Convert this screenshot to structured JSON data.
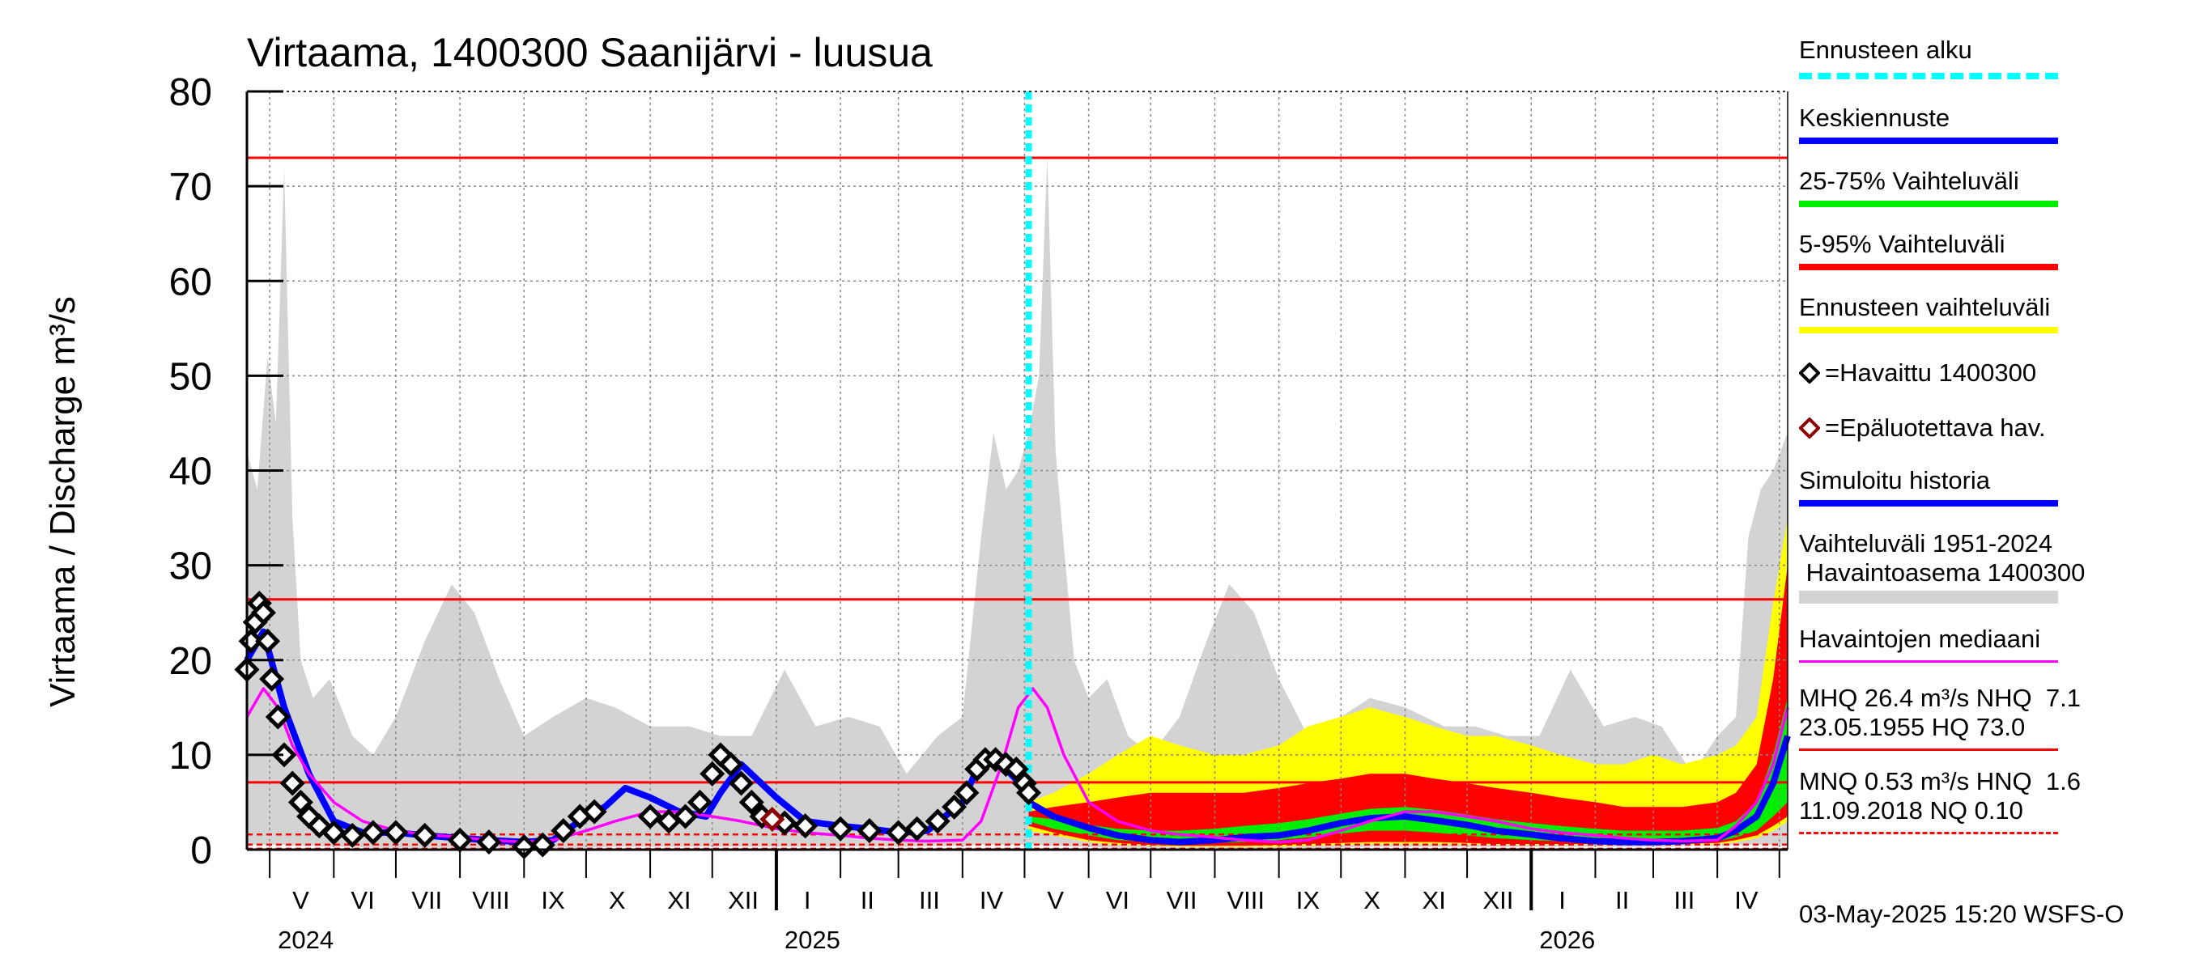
{
  "chart_data": {
    "type": "line",
    "title": "Virtaama, 1400300 Saanijärvi - luusua",
    "ylabel": "Virtaama / Discharge    m³/s",
    "ylim": [
      0,
      80
    ],
    "yticks": [
      0,
      10,
      20,
      30,
      40,
      50,
      60,
      70,
      80
    ],
    "xlim": [
      "2024-04-20",
      "2026-05-05"
    ],
    "month_labels": [
      "V",
      "VI",
      "VII",
      "VIII",
      "IX",
      "X",
      "XI",
      "XII",
      "I",
      "II",
      "III",
      "IV",
      "V",
      "VI",
      "VII",
      "VIII",
      "IX",
      "X",
      "XI",
      "XII",
      "I",
      "II",
      "III",
      "IV"
    ],
    "month_label_dates": [
      "2024-05-16",
      "2024-06-15",
      "2024-07-16",
      "2024-08-16",
      "2024-09-15",
      "2024-10-16",
      "2024-11-15",
      "2024-12-16",
      "2025-01-16",
      "2025-02-14",
      "2025-03-16",
      "2025-04-15",
      "2025-05-16",
      "2025-06-15",
      "2025-07-16",
      "2025-08-16",
      "2025-09-15",
      "2025-10-16",
      "2025-11-15",
      "2025-12-16",
      "2026-01-16",
      "2026-02-14",
      "2026-03-16",
      "2026-04-15"
    ],
    "year_labels": [
      {
        "text": "2024",
        "date": "2024-05-01"
      },
      {
        "text": "2025",
        "date": "2025-01-01"
      },
      {
        "text": "2026",
        "date": "2026-01-01"
      }
    ],
    "forecast_start": "2025-05-03",
    "reference_lines": [
      {
        "name": "HQ",
        "value": 73.0,
        "style": "solid"
      },
      {
        "name": "MHQ",
        "value": 26.4,
        "style": "solid"
      },
      {
        "name": "NHQ",
        "value": 7.1,
        "style": "solid"
      },
      {
        "name": "MNQ",
        "value": 0.53,
        "style": "dashed"
      },
      {
        "name": "HNQ",
        "value": 1.6,
        "style": "dashed"
      },
      {
        "name": "NQ",
        "value": 0.1,
        "style": "dashed"
      }
    ],
    "grid": true,
    "series": [
      {
        "name": "Vaihteluväli 1951-2024 Havaintoasema 1400300",
        "kind": "band",
        "color": "#d3d3d3",
        "x": [
          "2024-04-20",
          "2024-04-25",
          "2024-04-30",
          "2024-05-04",
          "2024-05-08",
          "2024-05-12",
          "2024-05-16",
          "2024-05-22",
          "2024-05-30",
          "2024-06-10",
          "2024-06-20",
          "2024-07-01",
          "2024-07-15",
          "2024-07-28",
          "2024-08-08",
          "2024-08-20",
          "2024-09-01",
          "2024-09-15",
          "2024-10-01",
          "2024-10-15",
          "2024-11-01",
          "2024-11-20",
          "2024-12-05",
          "2024-12-20",
          "2025-01-05",
          "2025-01-20",
          "2025-02-05",
          "2025-02-20",
          "2025-03-05",
          "2025-03-20",
          "2025-04-01",
          "2025-04-10",
          "2025-04-16",
          "2025-04-22",
          "2025-04-28",
          "2025-05-03",
          "2025-05-08",
          "2025-05-12",
          "2025-05-16",
          "2025-05-20",
          "2025-05-25",
          "2025-06-01",
          "2025-06-10",
          "2025-06-20",
          "2025-07-01",
          "2025-07-15",
          "2025-07-28",
          "2025-08-08",
          "2025-08-20",
          "2025-09-01",
          "2025-09-15",
          "2025-10-01",
          "2025-10-15",
          "2025-11-01",
          "2025-11-20",
          "2025-12-05",
          "2025-12-20",
          "2026-01-05",
          "2026-01-20",
          "2026-02-05",
          "2026-02-20",
          "2026-03-05",
          "2026-03-20",
          "2026-04-01",
          "2026-04-10",
          "2026-04-16",
          "2026-04-22",
          "2026-04-28",
          "2026-05-05"
        ],
        "low": [
          0.5,
          0.5,
          0.5,
          0.5,
          0.5,
          0.4,
          0.4,
          0.4,
          0.3,
          0.3,
          0.2,
          0.2,
          0.2,
          0.2,
          0.1,
          0.1,
          0.1,
          0.1,
          0.2,
          0.3,
          0.3,
          0.3,
          0.3,
          0.3,
          0.3,
          0.3,
          0.3,
          0.3,
          0.3,
          0.4,
          0.4,
          0.5,
          0.5,
          0.5,
          0.5,
          0.5,
          0.5,
          0.4,
          0.4,
          0.4,
          0.3,
          0.3,
          0.2,
          0.2,
          0.2,
          0.2,
          0.2,
          0.1,
          0.1,
          0.1,
          0.1,
          0.2,
          0.3,
          0.3,
          0.3,
          0.3,
          0.3,
          0.3,
          0.3,
          0.3,
          0.3,
          0.3,
          0.4,
          0.4,
          0.5,
          0.5,
          0.5,
          0.5,
          0.5
        ],
        "high": [
          42,
          38,
          52,
          45,
          72,
          35,
          20,
          16,
          18,
          12,
          10,
          14,
          22,
          28,
          25,
          18,
          12,
          14,
          16,
          15,
          13,
          13,
          12,
          12,
          19,
          13,
          14,
          13,
          8,
          12,
          14,
          33,
          44,
          38,
          40,
          44,
          50,
          73,
          42,
          32,
          20,
          16,
          18,
          12,
          10,
          14,
          22,
          28,
          25,
          18,
          12,
          14,
          16,
          15,
          13,
          13,
          12,
          12,
          19,
          13,
          14,
          13,
          8,
          12,
          14,
          33,
          38,
          40,
          44
        ]
      },
      {
        "name": "Ennusteen vaihteluväli",
        "kind": "band",
        "color": "#ffff00",
        "x": [
          "2025-05-03",
          "2025-05-15",
          "2025-06-01",
          "2025-06-15",
          "2025-07-01",
          "2025-07-15",
          "2025-08-01",
          "2025-08-15",
          "2025-09-01",
          "2025-09-15",
          "2025-10-01",
          "2025-10-15",
          "2025-11-01",
          "2025-11-15",
          "2025-12-01",
          "2025-12-15",
          "2026-01-01",
          "2026-01-15",
          "2026-02-01",
          "2026-02-15",
          "2026-03-01",
          "2026-03-15",
          "2026-04-01",
          "2026-04-10",
          "2026-04-20",
          "2026-04-28",
          "2026-05-05"
        ],
        "low": [
          2.0,
          1.5,
          0.8,
          0.5,
          0.4,
          0.3,
          0.3,
          0.3,
          0.3,
          0.4,
          0.5,
          0.6,
          0.6,
          0.6,
          0.6,
          0.5,
          0.5,
          0.5,
          0.5,
          0.5,
          0.5,
          0.5,
          0.6,
          0.8,
          1.2,
          2.0,
          3.0
        ],
        "high": [
          5,
          6,
          8,
          10,
          12,
          11,
          10,
          10,
          11,
          13,
          14,
          15,
          14,
          13,
          12,
          12,
          11,
          10,
          9,
          9,
          10,
          9,
          10,
          11,
          14,
          26,
          35
        ]
      },
      {
        "name": "5-95% Vaihteluväli",
        "kind": "band",
        "color": "#ff0000",
        "x": [
          "2025-05-03",
          "2025-05-15",
          "2025-06-01",
          "2025-06-15",
          "2025-07-01",
          "2025-07-15",
          "2025-08-01",
          "2025-08-15",
          "2025-09-01",
          "2025-09-15",
          "2025-10-01",
          "2025-10-15",
          "2025-11-01",
          "2025-11-15",
          "2025-12-01",
          "2025-12-15",
          "2026-01-01",
          "2026-01-15",
          "2026-02-01",
          "2026-02-15",
          "2026-03-01",
          "2026-03-15",
          "2026-04-01",
          "2026-04-10",
          "2026-04-20",
          "2026-04-28",
          "2026-05-05"
        ],
        "low": [
          2.5,
          1.8,
          1.0,
          0.7,
          0.5,
          0.4,
          0.4,
          0.4,
          0.5,
          0.6,
          0.7,
          0.8,
          0.8,
          0.8,
          0.7,
          0.6,
          0.6,
          0.6,
          0.6,
          0.6,
          0.6,
          0.6,
          0.7,
          1.0,
          1.5,
          2.5,
          3.5
        ],
        "high": [
          4,
          4.5,
          5,
          5.5,
          6,
          6,
          6,
          6,
          6.5,
          7,
          7.5,
          8,
          8,
          7.5,
          7,
          6.5,
          6,
          5.5,
          5,
          4.5,
          4.5,
          4.5,
          5,
          6,
          9,
          18,
          30
        ]
      },
      {
        "name": "25-75% Vaihteluväli",
        "kind": "band",
        "color": "#00ee00",
        "x": [
          "2025-05-03",
          "2025-05-15",
          "2025-06-01",
          "2025-06-15",
          "2025-07-01",
          "2025-07-15",
          "2025-08-01",
          "2025-08-15",
          "2025-09-01",
          "2025-09-15",
          "2025-10-01",
          "2025-10-15",
          "2025-11-01",
          "2025-11-15",
          "2025-12-01",
          "2025-12-15",
          "2026-01-01",
          "2026-01-15",
          "2026-02-01",
          "2026-02-15",
          "2026-03-01",
          "2026-03-15",
          "2026-04-01",
          "2026-04-10",
          "2026-04-20",
          "2026-04-28",
          "2026-05-05"
        ],
        "low": [
          3.0,
          2.2,
          1.5,
          1.0,
          0.8,
          0.7,
          0.7,
          0.8,
          1.0,
          1.3,
          1.7,
          2.0,
          2.0,
          1.8,
          1.5,
          1.2,
          1.0,
          0.9,
          0.8,
          0.8,
          0.8,
          0.8,
          0.9,
          1.3,
          2.0,
          3.5,
          5.0
        ],
        "high": [
          3.5,
          3.2,
          2.6,
          2.2,
          2.0,
          2.0,
          2.2,
          2.5,
          2.8,
          3.2,
          3.8,
          4.3,
          4.5,
          4.2,
          3.7,
          3.2,
          2.8,
          2.5,
          2.2,
          2.0,
          2.0,
          2.0,
          2.3,
          3.0,
          5.0,
          10,
          16
        ]
      },
      {
        "name": "Keskiennuste",
        "kind": "line",
        "color": "#0000ff",
        "x": [
          "2025-05-03",
          "2025-05-15",
          "2025-06-01",
          "2025-06-15",
          "2025-07-01",
          "2025-07-15",
          "2025-08-01",
          "2025-08-15",
          "2025-09-01",
          "2025-09-15",
          "2025-10-01",
          "2025-10-15",
          "2025-11-01",
          "2025-11-15",
          "2025-12-01",
          "2025-12-15",
          "2026-01-01",
          "2026-01-15",
          "2026-02-01",
          "2026-02-15",
          "2026-03-01",
          "2026-03-15",
          "2026-04-01",
          "2026-04-10",
          "2026-04-20",
          "2026-04-28",
          "2026-05-05"
        ],
        "values": [
          5.0,
          3.5,
          2.3,
          1.5,
          1.0,
          0.8,
          1.0,
          1.3,
          1.5,
          2.0,
          2.8,
          3.3,
          3.5,
          3.1,
          2.6,
          2.0,
          1.6,
          1.2,
          0.9,
          0.8,
          0.8,
          0.9,
          1.2,
          2.0,
          3.5,
          7.0,
          12
        ]
      },
      {
        "name": "Simuloitu historia",
        "kind": "line",
        "color": "#0000ff",
        "x": [
          "2024-04-20",
          "2024-04-28",
          "2024-05-08",
          "2024-05-20",
          "2024-06-01",
          "2024-06-15",
          "2024-07-01",
          "2024-07-15",
          "2024-08-01",
          "2024-08-15",
          "2024-09-01",
          "2024-09-15",
          "2024-10-01",
          "2024-10-10",
          "2024-10-20",
          "2024-11-01",
          "2024-11-15",
          "2024-11-28",
          "2024-12-05",
          "2024-12-15",
          "2025-01-01",
          "2025-01-15",
          "2025-02-01",
          "2025-02-15",
          "2025-03-01",
          "2025-03-15",
          "2025-04-01",
          "2025-04-10",
          "2025-04-20",
          "2025-05-03"
        ],
        "values": [
          20,
          23,
          15,
          8,
          3,
          1.8,
          1.8,
          1.5,
          1.2,
          1.0,
          0.8,
          1.0,
          3.5,
          4.5,
          6.5,
          5.5,
          4,
          3.5,
          6,
          9,
          5.5,
          3,
          2.5,
          2.2,
          1.8,
          2.0,
          5,
          9.5,
          9,
          6
        ]
      },
      {
        "name": "Havaittu 1400300",
        "kind": "markers",
        "color": "#000000",
        "x": [
          "2024-04-20",
          "2024-04-22",
          "2024-04-24",
          "2024-04-26",
          "2024-04-28",
          "2024-04-30",
          "2024-05-02",
          "2024-05-05",
          "2024-05-08",
          "2024-05-12",
          "2024-05-16",
          "2024-05-20",
          "2024-05-25",
          "2024-06-01",
          "2024-06-10",
          "2024-06-20",
          "2024-07-01",
          "2024-07-15",
          "2024-08-01",
          "2024-08-15",
          "2024-09-01",
          "2024-09-10",
          "2024-09-20",
          "2024-09-28",
          "2024-10-05",
          "2024-11-01",
          "2024-11-10",
          "2024-11-18",
          "2024-11-25",
          "2024-12-01",
          "2024-12-05",
          "2024-12-10",
          "2024-12-15",
          "2024-12-20",
          "2024-12-25",
          "2025-01-05",
          "2025-01-15",
          "2025-02-01",
          "2025-02-15",
          "2025-03-01",
          "2025-03-10",
          "2025-03-20",
          "2025-03-28",
          "2025-04-03",
          "2025-04-08",
          "2025-04-12",
          "2025-04-17",
          "2025-04-22",
          "2025-04-27",
          "2025-05-01",
          "2025-05-03"
        ],
        "values": [
          19,
          22,
          24,
          26,
          25,
          22,
          18,
          14,
          10,
          7,
          5,
          3.5,
          2.5,
          1.8,
          1.5,
          1.8,
          1.8,
          1.5,
          1.0,
          0.8,
          0.3,
          0.5,
          2.0,
          3.5,
          4.0,
          3.5,
          3.0,
          3.5,
          5.0,
          8.0,
          10,
          9,
          7,
          5,
          3.5,
          2.8,
          2.5,
          2.2,
          2.0,
          1.8,
          2.2,
          3.0,
          4.5,
          6.0,
          8.5,
          9.5,
          9.5,
          9.0,
          8.5,
          7.0,
          6.0
        ]
      },
      {
        "name": "Epäluotettava hav.",
        "kind": "markers",
        "color": "#8b0000",
        "x": [
          "2024-12-30"
        ],
        "values": [
          3.2
        ]
      },
      {
        "name": "Havaintojen mediaani",
        "kind": "line",
        "color": "#ff00ff",
        "x": [
          "2024-04-20",
          "2024-04-28",
          "2024-05-05",
          "2024-05-12",
          "2024-05-20",
          "2024-06-01",
          "2024-06-15",
          "2024-07-01",
          "2024-07-15",
          "2024-08-01",
          "2024-08-15",
          "2024-09-01",
          "2024-09-15",
          "2024-10-01",
          "2024-10-15",
          "2024-11-01",
          "2024-11-15",
          "2024-12-01",
          "2024-12-15",
          "2025-01-01",
          "2025-01-15",
          "2025-02-01",
          "2025-02-15",
          "2025-03-01",
          "2025-03-15",
          "2025-04-01",
          "2025-04-10",
          "2025-04-20",
          "2025-04-28",
          "2025-05-05",
          "2025-05-12",
          "2025-05-20",
          "2025-06-01",
          "2025-06-15",
          "2025-07-01",
          "2025-07-15",
          "2025-08-01",
          "2025-08-15",
          "2025-09-01",
          "2025-09-15",
          "2025-10-01",
          "2025-10-15",
          "2025-11-01",
          "2025-11-15",
          "2025-12-01",
          "2025-12-15",
          "2026-01-01",
          "2026-01-15",
          "2026-02-01",
          "2026-02-15",
          "2026-03-01",
          "2026-03-15",
          "2026-04-01",
          "2026-04-10",
          "2026-04-20",
          "2026-04-28",
          "2026-05-05"
        ],
        "values": [
          14,
          17,
          15,
          11,
          8,
          5,
          3,
          2,
          1.6,
          1.3,
          1.0,
          0.8,
          1.0,
          2.0,
          3.0,
          4.0,
          4.0,
          3.5,
          3.0,
          2.2,
          1.8,
          1.5,
          1.2,
          1.0,
          0.9,
          1.0,
          3,
          9,
          15,
          17,
          15,
          10,
          5,
          3,
          2,
          1.6,
          1.3,
          1.0,
          0.8,
          1.0,
          2.0,
          3.0,
          4.0,
          4.0,
          3.5,
          3.0,
          2.2,
          1.8,
          1.5,
          1.2,
          1.0,
          0.9,
          1.0,
          2.5,
          5,
          9,
          15
        ]
      }
    ]
  },
  "legend": {
    "forecast_start": "Ennusteen alku",
    "mean_forecast": "Keskiennuste",
    "range_25_75": "25-75% Vaihteluväli",
    "range_5_95": "5-95% Vaihteluväli",
    "forecast_range": "Ennusteen vaihteluväli",
    "observed": "=Havaittu 1400300",
    "unreliable": "=Epäluotettava hav.",
    "simulated": "Simuloitu historia",
    "hist_range_line1": "Vaihteluväli 1951-2024",
    "hist_range_line2": " Havaintoasema 1400300",
    "median": "Havaintojen mediaani",
    "mhq_line1": "MHQ 26.4 m³/s NHQ  7.1",
    "mhq_line2": "23.05.1955 HQ 73.0",
    "mnq_line1": "MNQ 0.53 m³/s HNQ  1.6",
    "mnq_line2": "11.09.2018 NQ 0.10"
  },
  "footer": "03-May-2025 15:20 WSFS-O",
  "colors": {
    "forecast_start": "#00ffff",
    "mean_forecast": "#0000ff",
    "range_25_75": "#00ee00",
    "range_5_95": "#ff0000",
    "forecast_range": "#ffff00",
    "observed": "#000000",
    "unreliable": "#8b0000",
    "simulated": "#0000ff",
    "hist_range": "#d3d3d3",
    "median": "#ff00ff",
    "reference": "#ff0000"
  }
}
